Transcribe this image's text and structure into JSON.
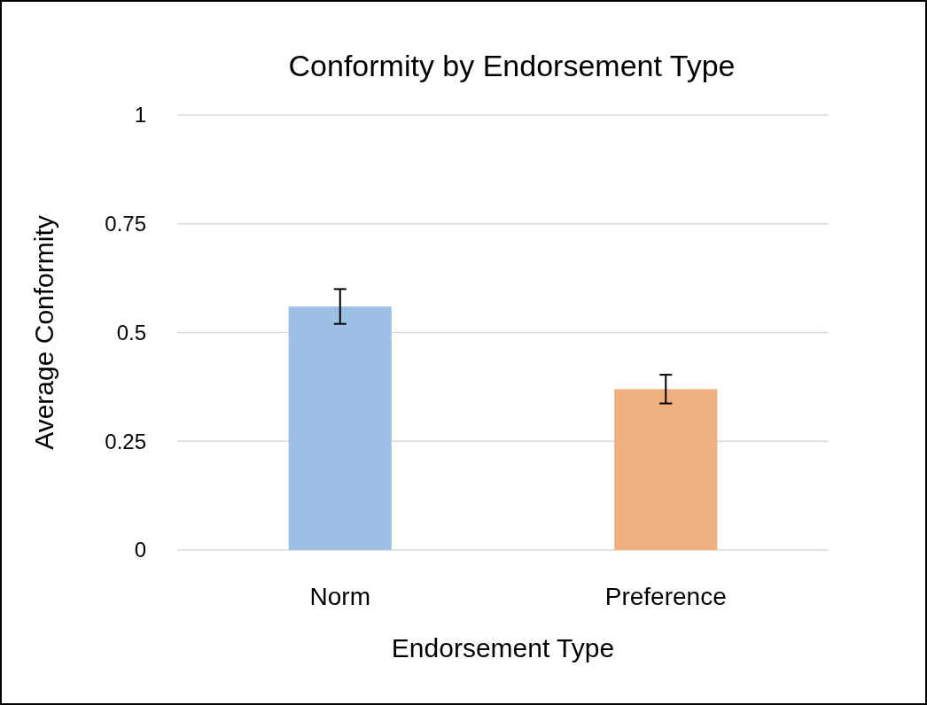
{
  "chart_data": {
    "type": "bar",
    "title": "Conformity by Endorsement Type",
    "xlabel": "Endorsement Type",
    "ylabel": "Average Conformity",
    "categories": [
      "Norm",
      "Preference"
    ],
    "values": [
      0.56,
      0.37
    ],
    "colors": [
      "#9dc0e6",
      "#f0af80"
    ],
    "errors": [
      0.04,
      0.033
    ],
    "ylim": [
      0,
      1
    ],
    "yticks": [
      0,
      0.25,
      0.5,
      0.75,
      1
    ],
    "grid": "y"
  }
}
